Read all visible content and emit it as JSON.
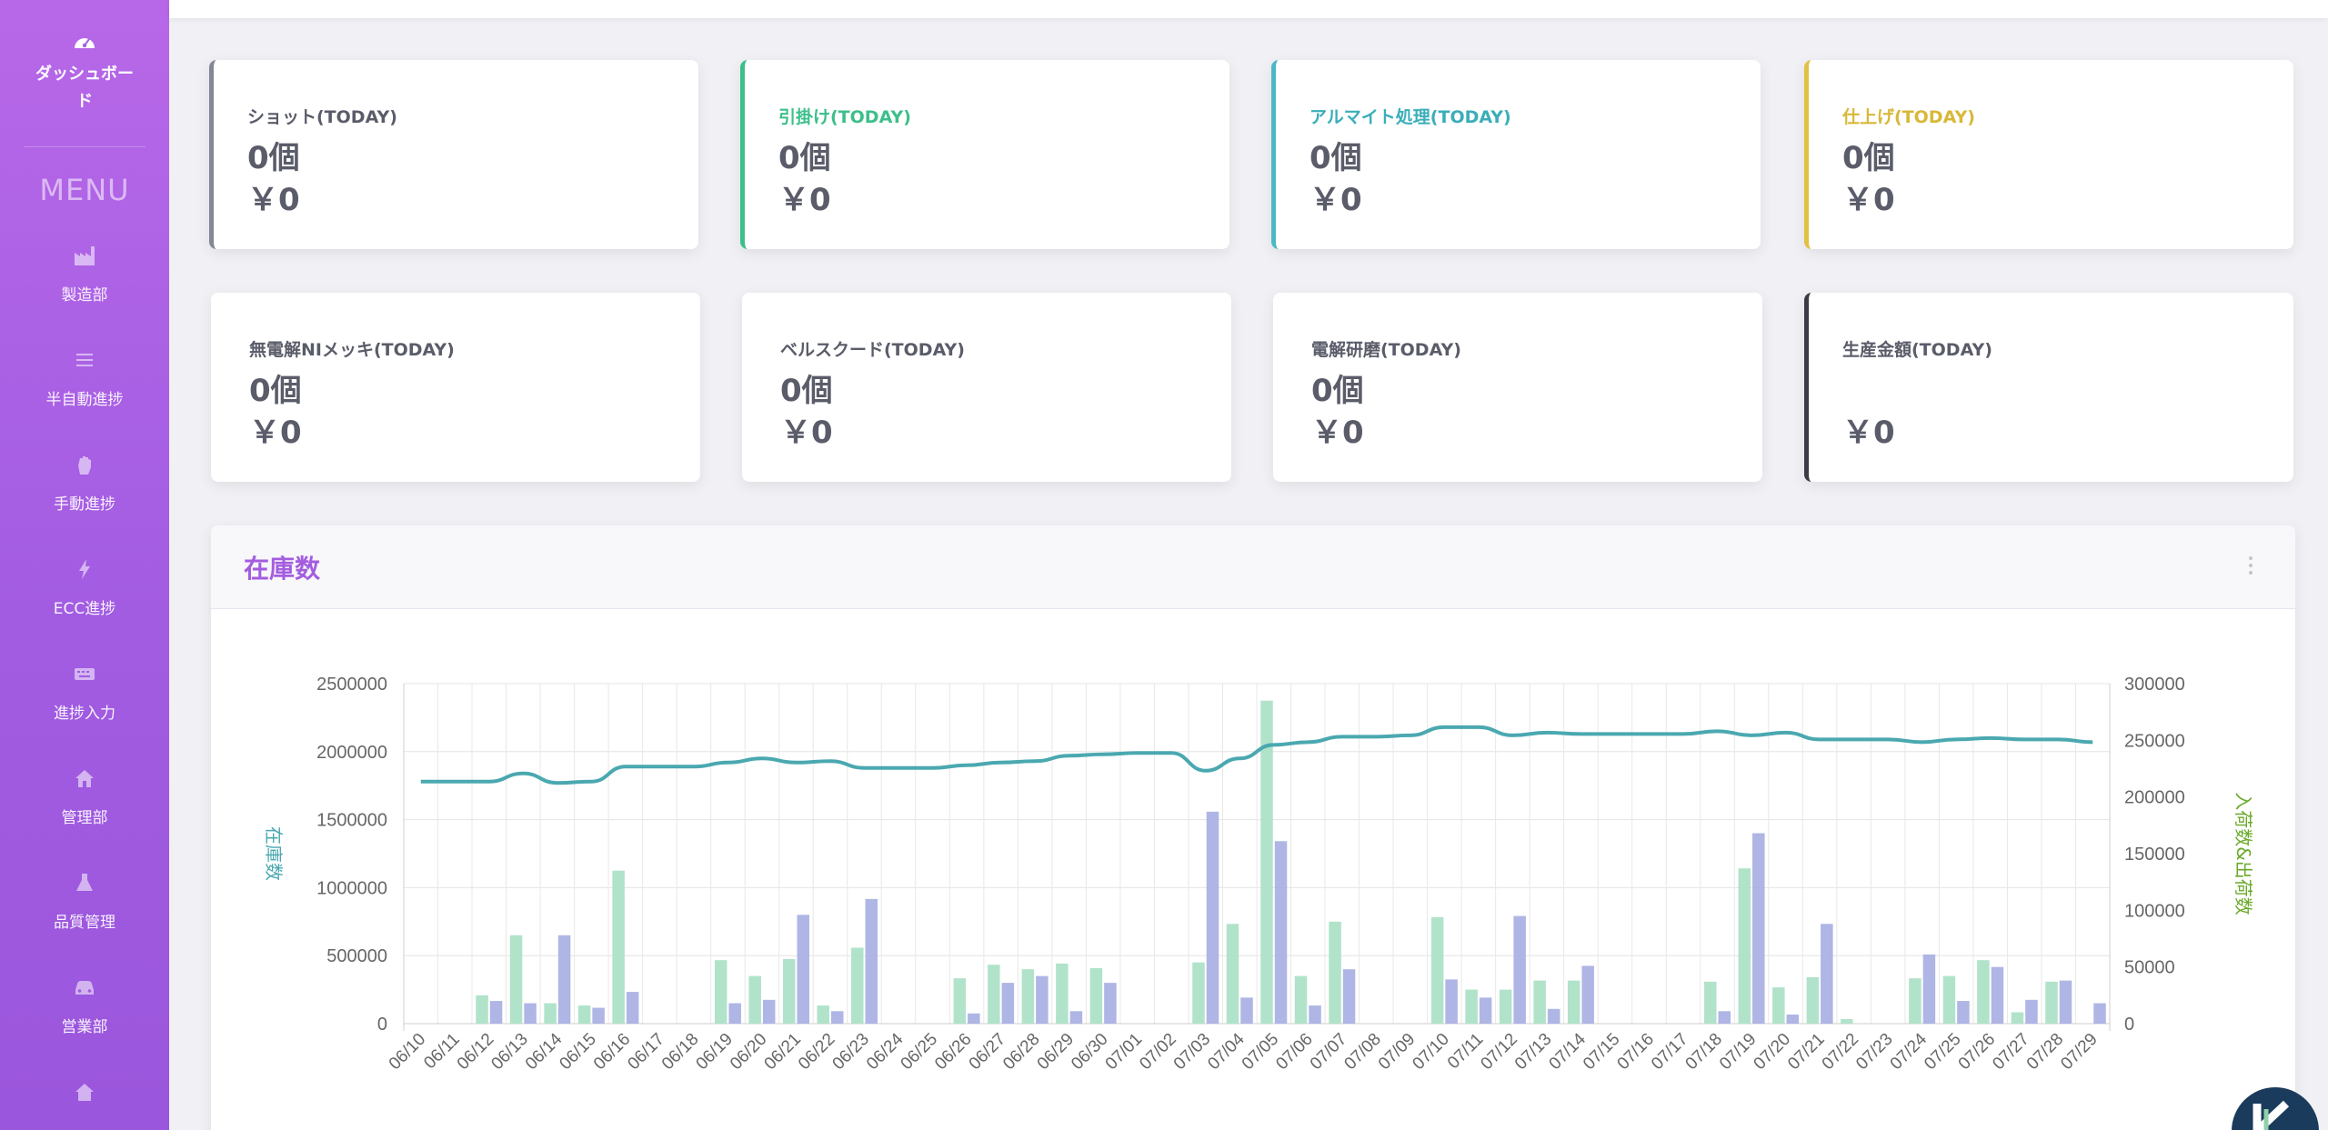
{
  "sidebar": {
    "brand_label": "ダッシュボード",
    "menu_title": "MENU",
    "items": [
      {
        "label": "製造部",
        "icon": "factory-icon"
      },
      {
        "label": "半自動進捗",
        "icon": "list-icon"
      },
      {
        "label": "手動進捗",
        "icon": "hand-icon"
      },
      {
        "label": "ECC進捗",
        "icon": "bolt-icon"
      },
      {
        "label": "進捗入力",
        "icon": "keyboard-icon"
      },
      {
        "label": "管理部",
        "icon": "home-icon"
      },
      {
        "label": "品質管理",
        "icon": "flask-icon"
      },
      {
        "label": "営業部",
        "icon": "car-icon"
      },
      {
        "label": "",
        "icon": "building-icon"
      }
    ]
  },
  "cards": [
    {
      "title": "ショット(TODAY)",
      "count": "0個",
      "yen": "￥0",
      "accent": "#858796",
      "title_color": "#5a5c69"
    },
    {
      "title": "引掛け(TODAY)",
      "count": "0個",
      "yen": "￥0",
      "accent": "#3cbf8a",
      "title_color": "#3cbf8a"
    },
    {
      "title": "アルマイト処理(TODAY)",
      "count": "0個",
      "yen": "￥0",
      "accent": "#4cb8c4",
      "title_color": "#3aaeb9"
    },
    {
      "title": "仕上げ(TODAY)",
      "count": "0個",
      "yen": "￥0",
      "accent": "#e2c044",
      "title_color": "#d8b838"
    },
    {
      "title": "無電解NIメッキ(TODAY)",
      "count": "0個",
      "yen": "￥0",
      "accent": "",
      "title_color": "#5a5c69"
    },
    {
      "title": "ベルスクード(TODAY)",
      "count": "0個",
      "yen": "￥0",
      "accent": "",
      "title_color": "#5a5c69"
    },
    {
      "title": "電解研磨(TODAY)",
      "count": "0個",
      "yen": "￥0",
      "accent": "",
      "title_color": "#5a5c69"
    },
    {
      "title": "生産金額(TODAY)",
      "count": "",
      "yen": "￥0",
      "accent": "#3a3b45",
      "title_color": "#5a5c69"
    }
  ],
  "panel": {
    "title": "在庫数"
  },
  "chart_data": {
    "type": "bar+line",
    "x": [
      "06/10",
      "06/11",
      "06/12",
      "06/13",
      "06/14",
      "06/15",
      "06/16",
      "06/17",
      "06/18",
      "06/19",
      "06/20",
      "06/21",
      "06/22",
      "06/23",
      "06/24",
      "06/25",
      "06/26",
      "06/27",
      "06/28",
      "06/29",
      "06/30",
      "07/01",
      "07/02",
      "07/03",
      "07/04",
      "07/05",
      "07/06",
      "07/07",
      "07/08",
      "07/09",
      "07/10",
      "07/11",
      "07/12",
      "07/13",
      "07/14",
      "07/15",
      "07/16",
      "07/17",
      "07/18",
      "07/19",
      "07/20",
      "07/21",
      "07/22",
      "07/23",
      "07/24",
      "07/25",
      "07/26",
      "07/27",
      "07/28",
      "07/29"
    ],
    "ylabel_left": "在庫数",
    "ylabel_right": "入荷数&出荷数",
    "ylim_left": [
      0,
      2500000
    ],
    "ylim_right": [
      0,
      300000
    ],
    "yticks_left": [
      "0",
      "500000",
      "1000000",
      "1500000",
      "2000000",
      "2500000"
    ],
    "yticks_right": [
      "0",
      "50000",
      "100000",
      "150000",
      "200000",
      "250000",
      "300000"
    ],
    "grid": true,
    "colors": {
      "line": "#4aa8b0",
      "green": "#a8e0c4",
      "blue": "#a6aee2"
    },
    "series": [
      {
        "axis": "left",
        "kind": "line",
        "values": [
          1780000,
          1780000,
          1780000,
          1840000,
          1770000,
          1780000,
          1890000,
          1890000,
          1890000,
          1920000,
          1950000,
          1920000,
          1930000,
          1880000,
          1880000,
          1880000,
          1900000,
          1920000,
          1930000,
          1970000,
          1980000,
          1990000,
          1990000,
          1860000,
          1950000,
          2050000,
          2070000,
          2110000,
          2110000,
          2120000,
          2180000,
          2180000,
          2120000,
          2140000,
          2130000,
          2130000,
          2130000,
          2130000,
          2150000,
          2120000,
          2140000,
          2090000,
          2090000,
          2090000,
          2070000,
          2090000,
          2100000,
          2090000,
          2090000,
          2070000
        ]
      },
      {
        "axis": "right",
        "kind": "bar",
        "color_key": "green",
        "values": [
          0,
          0,
          25000,
          78000,
          18000,
          16000,
          135000,
          0,
          0,
          56000,
          42000,
          57000,
          16000,
          67000,
          0,
          0,
          40000,
          52000,
          48000,
          53000,
          49000,
          0,
          0,
          54000,
          88000,
          285000,
          42000,
          90000,
          0,
          0,
          94000,
          30000,
          30000,
          38000,
          38000,
          0,
          0,
          0,
          37000,
          137000,
          32000,
          41000,
          4000,
          0,
          40000,
          42000,
          56000,
          10000,
          37000,
          0
        ]
      },
      {
        "axis": "right",
        "kind": "bar",
        "color_key": "blue",
        "values": [
          0,
          0,
          20000,
          18000,
          78000,
          14000,
          28000,
          0,
          0,
          18000,
          21000,
          96000,
          11000,
          110000,
          0,
          0,
          9000,
          36000,
          42000,
          11000,
          36000,
          0,
          0,
          187000,
          23000,
          161000,
          16000,
          48000,
          0,
          0,
          39000,
          23000,
          95000,
          13000,
          51000,
          0,
          0,
          0,
          11000,
          168000,
          8000,
          88000,
          0,
          0,
          61000,
          20000,
          50000,
          21000,
          38000,
          18000
        ]
      }
    ]
  }
}
